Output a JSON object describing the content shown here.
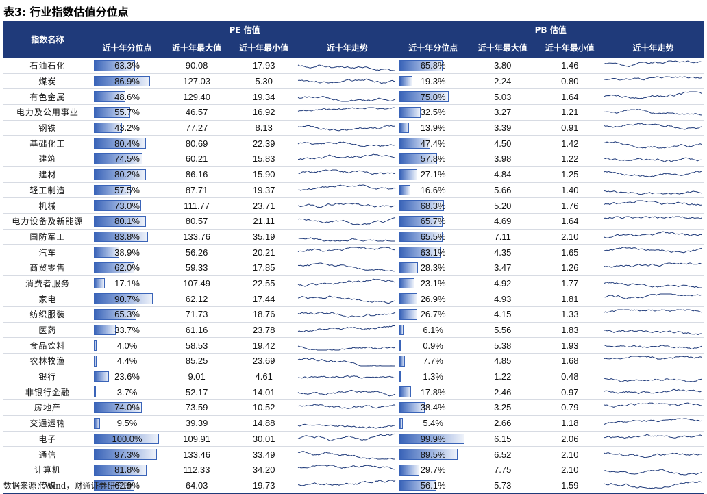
{
  "title": "表3: 行业指数估值分位点",
  "headers": {
    "name": "指数名称",
    "pe_group": "PE 估值",
    "pb_group": "PB 估值",
    "pct": "近十年分位点",
    "max": "近十年最大值",
    "min": "近十年最小值",
    "trend": "近十年走势"
  },
  "rows": [
    {
      "name": "石油石化",
      "pe_pct": "63.3%",
      "pe_max": "90.08",
      "pe_min": "17.93",
      "pb_pct": "65.8%",
      "pb_max": "3.80",
      "pb_min": "1.46"
    },
    {
      "name": "煤炭",
      "pe_pct": "86.9%",
      "pe_max": "127.03",
      "pe_min": "5.30",
      "pb_pct": "19.3%",
      "pb_max": "2.24",
      "pb_min": "0.80"
    },
    {
      "name": "有色金属",
      "pe_pct": "48.6%",
      "pe_max": "129.40",
      "pe_min": "19.34",
      "pb_pct": "75.0%",
      "pb_max": "5.03",
      "pb_min": "1.64"
    },
    {
      "name": "电力及公用事业",
      "pe_pct": "55.7%",
      "pe_max": "46.57",
      "pe_min": "16.92",
      "pb_pct": "32.5%",
      "pb_max": "3.27",
      "pb_min": "1.21"
    },
    {
      "name": "钢铁",
      "pe_pct": "43.2%",
      "pe_max": "77.27",
      "pe_min": "8.13",
      "pb_pct": "13.9%",
      "pb_max": "3.39",
      "pb_min": "0.91"
    },
    {
      "name": "基础化工",
      "pe_pct": "80.4%",
      "pe_max": "80.69",
      "pe_min": "22.39",
      "pb_pct": "47.4%",
      "pb_max": "4.50",
      "pb_min": "1.42"
    },
    {
      "name": "建筑",
      "pe_pct": "74.5%",
      "pe_max": "60.21",
      "pe_min": "15.83",
      "pb_pct": "57.8%",
      "pb_max": "3.98",
      "pb_min": "1.22"
    },
    {
      "name": "建材",
      "pe_pct": "80.2%",
      "pe_max": "86.16",
      "pe_min": "15.90",
      "pb_pct": "27.1%",
      "pb_max": "4.84",
      "pb_min": "1.25"
    },
    {
      "name": "轻工制造",
      "pe_pct": "57.5%",
      "pe_max": "87.71",
      "pe_min": "19.37",
      "pb_pct": "16.6%",
      "pb_max": "5.66",
      "pb_min": "1.40"
    },
    {
      "name": "机械",
      "pe_pct": "73.0%",
      "pe_max": "111.77",
      "pe_min": "23.71",
      "pb_pct": "68.3%",
      "pb_max": "5.20",
      "pb_min": "1.76"
    },
    {
      "name": "电力设备及新能源",
      "pe_pct": "80.1%",
      "pe_max": "80.57",
      "pe_min": "21.11",
      "pb_pct": "65.7%",
      "pb_max": "4.69",
      "pb_min": "1.64"
    },
    {
      "name": "国防军工",
      "pe_pct": "83.8%",
      "pe_max": "133.76",
      "pe_min": "35.19",
      "pb_pct": "65.5%",
      "pb_max": "7.11",
      "pb_min": "2.10"
    },
    {
      "name": "汽车",
      "pe_pct": "38.9%",
      "pe_max": "56.26",
      "pe_min": "20.21",
      "pb_pct": "63.1%",
      "pb_max": "4.35",
      "pb_min": "1.65"
    },
    {
      "name": "商贸零售",
      "pe_pct": "62.0%",
      "pe_max": "59.33",
      "pe_min": "17.85",
      "pb_pct": "28.3%",
      "pb_max": "3.47",
      "pb_min": "1.26"
    },
    {
      "name": "消费者服务",
      "pe_pct": "17.1%",
      "pe_max": "107.49",
      "pe_min": "22.55",
      "pb_pct": "23.1%",
      "pb_max": "4.92",
      "pb_min": "1.77"
    },
    {
      "name": "家电",
      "pe_pct": "90.7%",
      "pe_max": "62.12",
      "pe_min": "17.44",
      "pb_pct": "26.9%",
      "pb_max": "4.93",
      "pb_min": "1.81"
    },
    {
      "name": "纺织服装",
      "pe_pct": "65.3%",
      "pe_max": "71.73",
      "pe_min": "18.76",
      "pb_pct": "26.7%",
      "pb_max": "4.15",
      "pb_min": "1.33"
    },
    {
      "name": "医药",
      "pe_pct": "33.7%",
      "pe_max": "61.16",
      "pe_min": "23.78",
      "pb_pct": "6.1%",
      "pb_max": "5.56",
      "pb_min": "1.83"
    },
    {
      "name": "食品饮料",
      "pe_pct": "4.0%",
      "pe_max": "58.53",
      "pe_min": "19.42",
      "pb_pct": "0.9%",
      "pb_max": "5.38",
      "pb_min": "1.93"
    },
    {
      "name": "农林牧渔",
      "pe_pct": "4.4%",
      "pe_max": "85.25",
      "pe_min": "23.69",
      "pb_pct": "7.7%",
      "pb_max": "4.85",
      "pb_min": "1.68"
    },
    {
      "name": "银行",
      "pe_pct": "23.6%",
      "pe_max": "9.01",
      "pe_min": "4.61",
      "pb_pct": "1.3%",
      "pb_max": "1.22",
      "pb_min": "0.48"
    },
    {
      "name": "非银行金融",
      "pe_pct": "3.7%",
      "pe_max": "52.17",
      "pe_min": "14.01",
      "pb_pct": "17.8%",
      "pb_max": "2.46",
      "pb_min": "0.97"
    },
    {
      "name": "房地产",
      "pe_pct": "74.0%",
      "pe_max": "73.59",
      "pe_min": "10.52",
      "pb_pct": "38.4%",
      "pb_max": "3.25",
      "pb_min": "0.79"
    },
    {
      "name": "交通运输",
      "pe_pct": "9.5%",
      "pe_max": "39.39",
      "pe_min": "14.88",
      "pb_pct": "5.4%",
      "pb_max": "2.66",
      "pb_min": "1.18"
    },
    {
      "name": "电子",
      "pe_pct": "100.0%",
      "pe_max": "109.91",
      "pe_min": "30.01",
      "pb_pct": "99.9%",
      "pb_max": "6.15",
      "pb_min": "2.06"
    },
    {
      "name": "通信",
      "pe_pct": "97.3%",
      "pe_max": "133.46",
      "pe_min": "33.49",
      "pb_pct": "89.5%",
      "pb_max": "6.52",
      "pb_min": "2.10"
    },
    {
      "name": "计算机",
      "pe_pct": "81.8%",
      "pe_max": "112.33",
      "pe_min": "34.20",
      "pb_pct": "29.7%",
      "pb_max": "7.75",
      "pb_min": "2.10"
    },
    {
      "name": "传媒",
      "pe_pct": "62.9%",
      "pe_max": "64.03",
      "pe_min": "19.73",
      "pb_pct": "56.1%",
      "pb_max": "5.73",
      "pb_min": "1.59"
    }
  ],
  "source": "数据来源：Wind，财通证券研究所",
  "colors": {
    "header_bg": "#1f3a7a",
    "bar": "#3a64b8",
    "sparkline": "#1f3a7a"
  }
}
